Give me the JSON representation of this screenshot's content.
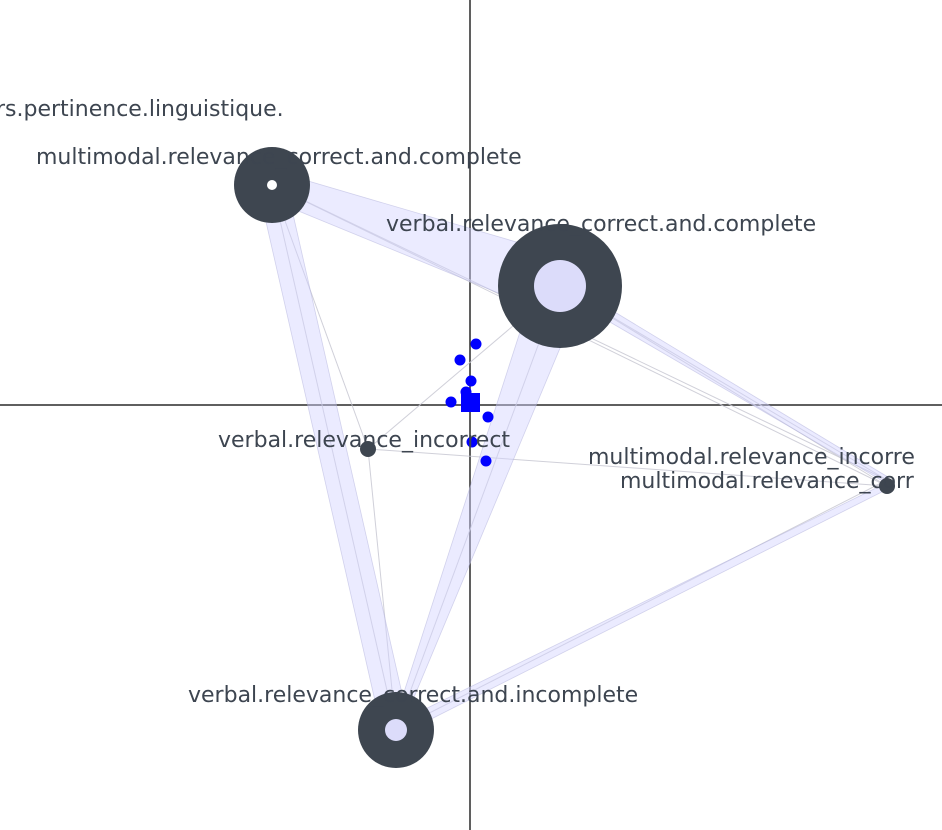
{
  "graph": {
    "colors": {
      "node": "#3e4650",
      "node_inner": "#dcdcfa",
      "edge_fill": "#d2d2ff",
      "edge_line": "#c8c8d2",
      "point": "#0000ff",
      "axis": "#2a2a2a",
      "label": "#3d4550"
    },
    "labels": {
      "partial_top": "rs.pertinence.linguistique."
    },
    "nodes": [
      {
        "id": "mm_cc",
        "label": "multimodal.relevance_correct.and.complete",
        "size": "medium",
        "inner": "small"
      },
      {
        "id": "vb_cc",
        "label": "verbal.relevance_correct.and.complete",
        "size": "large",
        "inner": "large"
      },
      {
        "id": "vb_inc",
        "label": "verbal.relevance_incorrect",
        "size": "small",
        "inner": "none"
      },
      {
        "id": "mm_inc",
        "label": "multimodal.relevance_incorre",
        "size": "none",
        "inner": "none"
      },
      {
        "id": "mm_corr",
        "label": "multimodal.relevance_corr",
        "size": "small",
        "inner": "none"
      },
      {
        "id": "vb_ci",
        "label": "verbal.relevance_correct.and.incomplete",
        "size": "medium",
        "inner": "medium"
      }
    ],
    "points": {
      "square_count": 1,
      "dot_count": 8
    }
  }
}
